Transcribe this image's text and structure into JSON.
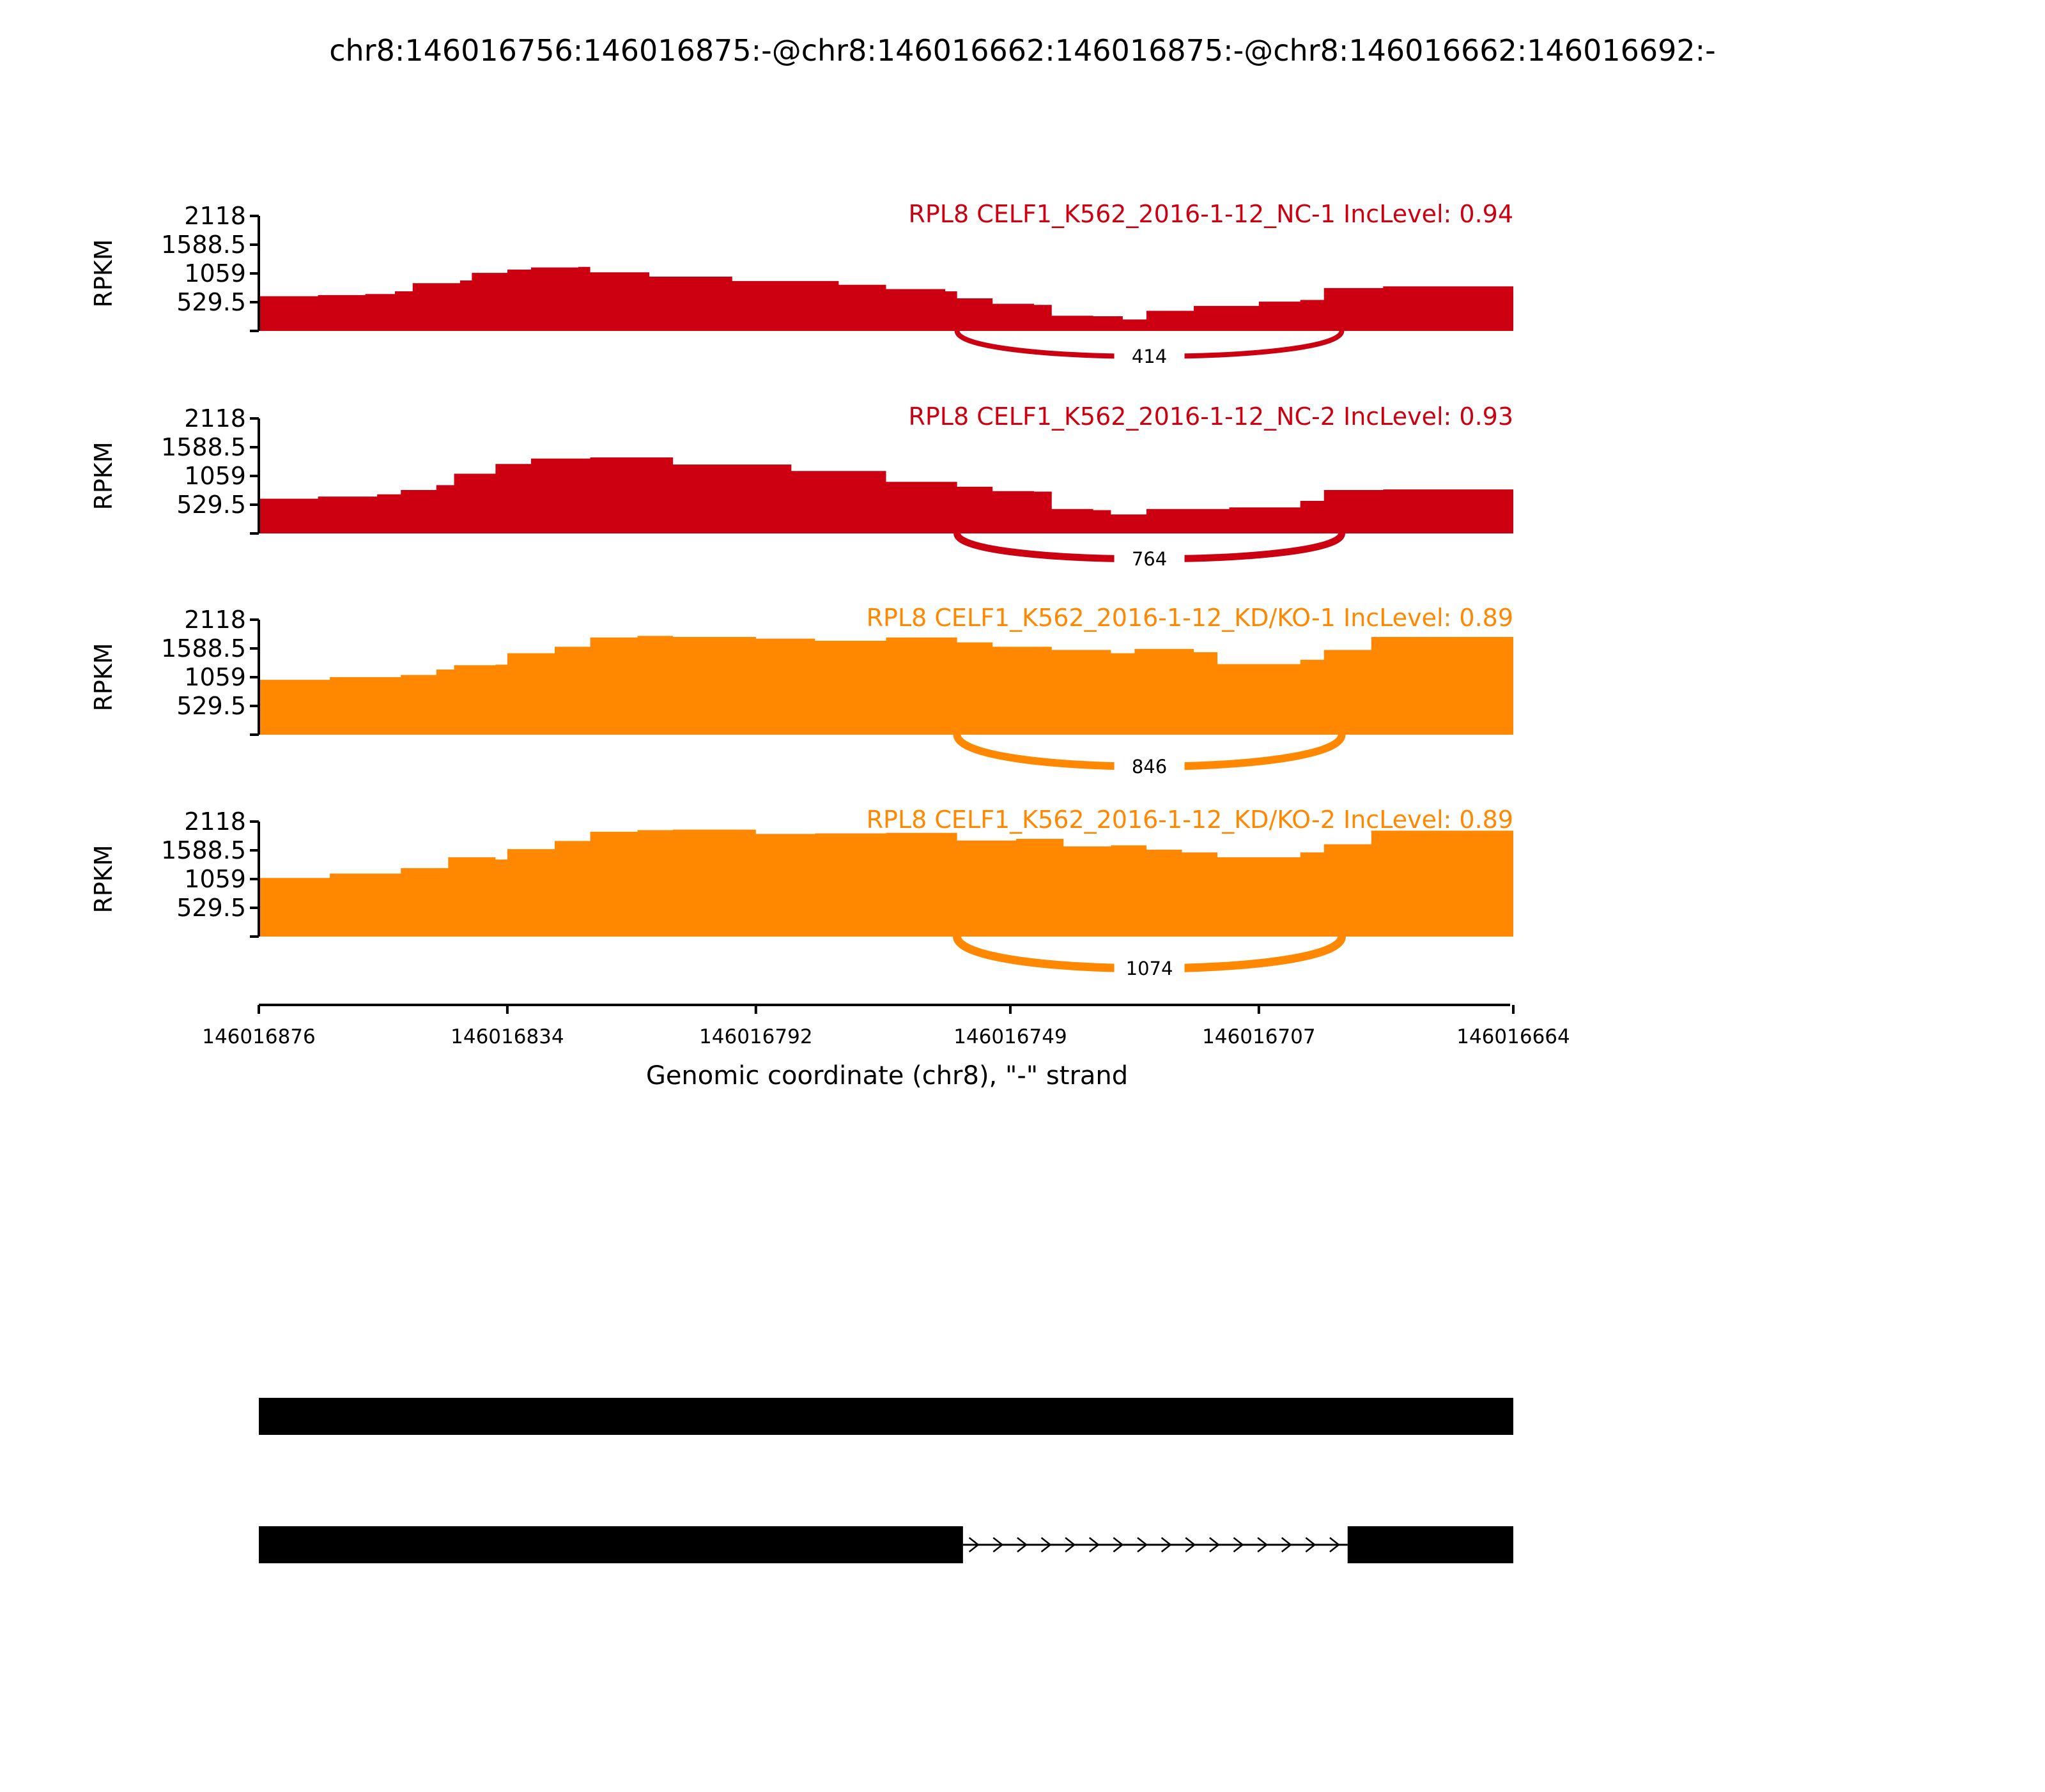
{
  "title": "chr8:146016756:146016875:-@chr8:146016662:146016875:-@chr8:146016662:146016692:-",
  "colors": {
    "NC": "#cc0010",
    "KD": "#ff8800",
    "axis": "#000000",
    "gene": "#000000"
  },
  "chart_data": {
    "type": "area",
    "title": "chr8:146016756:146016875:-@chr8:146016662:146016875:-@chr8:146016662:146016692:-",
    "xlabel": "Genomic coordinate (chr8), \"-\" strand",
    "ylabel": "RPKM",
    "xlim": [
      146016876,
      146016664
    ],
    "x_ticks": [
      "146016876",
      "146016834",
      "146016792",
      "146016749",
      "146016707",
      "146016664"
    ],
    "ylim": [
      0,
      2118
    ],
    "y_ticks": [
      "2118",
      "1588.5",
      "1059",
      "529.5"
    ],
    "tracks": [
      {
        "label": "RPL8 CELF1_K562_2016-1-12_NC-1 IncLevel: 0.94",
        "group": "NC",
        "coverage": [
          {
            "x": 146016876,
            "y": 640
          },
          {
            "x": 146016866,
            "y": 660
          },
          {
            "x": 146016858,
            "y": 680
          },
          {
            "x": 146016853,
            "y": 730
          },
          {
            "x": 146016850,
            "y": 880
          },
          {
            "x": 146016842,
            "y": 930
          },
          {
            "x": 146016840,
            "y": 1070
          },
          {
            "x": 146016834,
            "y": 1130
          },
          {
            "x": 146016830,
            "y": 1170
          },
          {
            "x": 146016822,
            "y": 1180
          },
          {
            "x": 146016820,
            "y": 1080
          },
          {
            "x": 146016810,
            "y": 1000
          },
          {
            "x": 146016796,
            "y": 920
          },
          {
            "x": 146016778,
            "y": 850
          },
          {
            "x": 146016770,
            "y": 770
          },
          {
            "x": 146016760,
            "y": 730
          },
          {
            "x": 146016758,
            "y": 600
          },
          {
            "x": 146016752,
            "y": 500
          },
          {
            "x": 146016745,
            "y": 480
          },
          {
            "x": 146016742,
            "y": 280
          },
          {
            "x": 146016735,
            "y": 270
          },
          {
            "x": 146016730,
            "y": 210
          },
          {
            "x": 146016726,
            "y": 370
          },
          {
            "x": 146016718,
            "y": 460
          },
          {
            "x": 146016707,
            "y": 540
          },
          {
            "x": 146016700,
            "y": 570
          },
          {
            "x": 146016696,
            "y": 790
          },
          {
            "x": 146016686,
            "y": 820
          },
          {
            "x": 146016664,
            "y": 860
          }
        ],
        "junction": {
          "count": "414",
          "from": 146016758,
          "to": 146016693
        }
      },
      {
        "label": "RPL8 CELF1_K562_2016-1-12_NC-2 IncLevel: 0.93",
        "group": "NC",
        "coverage": [
          {
            "x": 146016876,
            "y": 640
          },
          {
            "x": 146016866,
            "y": 680
          },
          {
            "x": 146016856,
            "y": 720
          },
          {
            "x": 146016852,
            "y": 800
          },
          {
            "x": 146016846,
            "y": 890
          },
          {
            "x": 146016843,
            "y": 1100
          },
          {
            "x": 146016836,
            "y": 1280
          },
          {
            "x": 146016830,
            "y": 1380
          },
          {
            "x": 146016820,
            "y": 1400
          },
          {
            "x": 146016806,
            "y": 1270
          },
          {
            "x": 146016786,
            "y": 1150
          },
          {
            "x": 146016770,
            "y": 950
          },
          {
            "x": 146016758,
            "y": 860
          },
          {
            "x": 146016752,
            "y": 780
          },
          {
            "x": 146016745,
            "y": 770
          },
          {
            "x": 146016742,
            "y": 450
          },
          {
            "x": 146016735,
            "y": 430
          },
          {
            "x": 146016732,
            "y": 350
          },
          {
            "x": 146016726,
            "y": 450
          },
          {
            "x": 146016712,
            "y": 480
          },
          {
            "x": 146016700,
            "y": 600
          },
          {
            "x": 146016696,
            "y": 800
          },
          {
            "x": 146016686,
            "y": 810
          },
          {
            "x": 146016664,
            "y": 790
          }
        ],
        "junction": {
          "count": "764",
          "from": 146016758,
          "to": 146016693
        }
      },
      {
        "label": "RPL8 CELF1_K562_2016-1-12_KD/KO-1 IncLevel: 0.89",
        "group": "KD",
        "coverage": [
          {
            "x": 146016876,
            "y": 1010
          },
          {
            "x": 146016864,
            "y": 1060
          },
          {
            "x": 146016852,
            "y": 1100
          },
          {
            "x": 146016846,
            "y": 1200
          },
          {
            "x": 146016843,
            "y": 1280
          },
          {
            "x": 146016836,
            "y": 1290
          },
          {
            "x": 146016834,
            "y": 1500
          },
          {
            "x": 146016826,
            "y": 1620
          },
          {
            "x": 146016820,
            "y": 1790
          },
          {
            "x": 146016812,
            "y": 1820
          },
          {
            "x": 146016806,
            "y": 1800
          },
          {
            "x": 146016792,
            "y": 1770
          },
          {
            "x": 146016782,
            "y": 1730
          },
          {
            "x": 146016770,
            "y": 1790
          },
          {
            "x": 146016758,
            "y": 1700
          },
          {
            "x": 146016752,
            "y": 1620
          },
          {
            "x": 146016742,
            "y": 1560
          },
          {
            "x": 146016732,
            "y": 1500
          },
          {
            "x": 146016728,
            "y": 1580
          },
          {
            "x": 146016718,
            "y": 1520
          },
          {
            "x": 146016714,
            "y": 1300
          },
          {
            "x": 146016700,
            "y": 1380
          },
          {
            "x": 146016696,
            "y": 1560
          },
          {
            "x": 146016688,
            "y": 1800
          },
          {
            "x": 146016664,
            "y": 1800
          }
        ],
        "junction": {
          "count": "846",
          "from": 146016758,
          "to": 146016693
        }
      },
      {
        "label": "RPL8 CELF1_K562_2016-1-12_KD/KO-2 IncLevel: 0.89",
        "group": "KD",
        "coverage": [
          {
            "x": 146016876,
            "y": 1080
          },
          {
            "x": 146016864,
            "y": 1160
          },
          {
            "x": 146016852,
            "y": 1260
          },
          {
            "x": 146016844,
            "y": 1460
          },
          {
            "x": 146016836,
            "y": 1420
          },
          {
            "x": 146016834,
            "y": 1610
          },
          {
            "x": 146016826,
            "y": 1760
          },
          {
            "x": 146016820,
            "y": 1930
          },
          {
            "x": 146016812,
            "y": 1960
          },
          {
            "x": 146016806,
            "y": 1970
          },
          {
            "x": 146016792,
            "y": 1890
          },
          {
            "x": 146016782,
            "y": 1900
          },
          {
            "x": 146016770,
            "y": 1910
          },
          {
            "x": 146016758,
            "y": 1770
          },
          {
            "x": 146016748,
            "y": 1800
          },
          {
            "x": 146016740,
            "y": 1660
          },
          {
            "x": 146016732,
            "y": 1680
          },
          {
            "x": 146016726,
            "y": 1600
          },
          {
            "x": 146016720,
            "y": 1550
          },
          {
            "x": 146016714,
            "y": 1460
          },
          {
            "x": 146016700,
            "y": 1550
          },
          {
            "x": 146016696,
            "y": 1700
          },
          {
            "x": 146016688,
            "y": 1950
          },
          {
            "x": 146016664,
            "y": 1940
          }
        ],
        "junction": {
          "count": "1074",
          "from": 146016758,
          "to": 146016693
        }
      }
    ],
    "isoforms": [
      {
        "exons": [
          [
            146016876,
            146016664
          ]
        ]
      },
      {
        "exons": [
          [
            146016876,
            146016757
          ],
          [
            146016692,
            146016664
          ]
        ],
        "intron_direction": "right"
      }
    ]
  }
}
